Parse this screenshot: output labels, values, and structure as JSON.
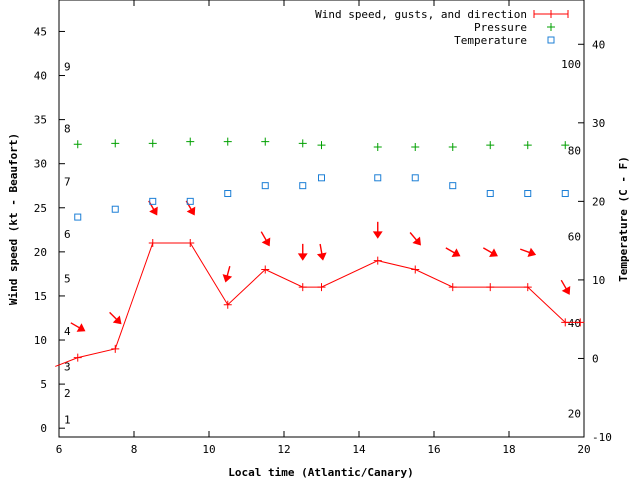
{
  "chart_data": {
    "type": "line",
    "title": "",
    "xlabel": "Local time (Atlantic/Canary)",
    "ylabel": "Wind speed (kt - Beaufort)",
    "y2label": "Temperature (C - F)",
    "xlim": [
      6,
      20
    ],
    "ylim": [
      -1,
      48
    ],
    "y2lim": [
      -10,
      45
    ],
    "x_ticks": [
      6,
      8,
      10,
      12,
      14,
      16,
      18,
      20
    ],
    "y_ticks": [
      0,
      5,
      10,
      15,
      20,
      25,
      30,
      35,
      40,
      45
    ],
    "y2_ticks": [
      -10,
      0,
      10,
      20,
      30,
      40
    ],
    "beaufort_labels": [
      {
        "label": "1",
        "y": 1
      },
      {
        "label": "2",
        "y": 4
      },
      {
        "label": "3",
        "y": 7
      },
      {
        "label": "4",
        "y": 11
      },
      {
        "label": "5",
        "y": 17
      },
      {
        "label": "6",
        "y": 22
      },
      {
        "label": "7",
        "y": 28
      },
      {
        "label": "8",
        "y": 34
      },
      {
        "label": "9",
        "y": 41
      }
    ],
    "fahrenheit_labels": [
      {
        "label": "20",
        "y2": -7
      },
      {
        "label": "40",
        "y2": 4.5
      },
      {
        "label": "60",
        "y2": 15.5
      },
      {
        "label": "80",
        "y2": 26.5
      },
      {
        "label": "100",
        "y2": 37.5
      }
    ],
    "legend": {
      "position": "top-right",
      "entries": [
        "Wind speed, gusts, and direction",
        "Pressure",
        "Temperature"
      ]
    },
    "series": [
      {
        "name": "Wind speed, gusts, and direction",
        "color": "#ff0000",
        "marker": "plus",
        "x": [
          5.9,
          6.5,
          7.5,
          8.5,
          9.5,
          10.5,
          11.5,
          12.5,
          13,
          14.5,
          15.5,
          16.5,
          17.5,
          18.5,
          19.5,
          19.9
        ],
        "y": [
          7,
          8,
          9,
          21,
          21,
          14,
          18,
          16,
          16,
          19,
          18,
          16,
          16,
          16,
          12,
          12
        ]
      },
      {
        "name": "Wind direction arrows",
        "color": "#ff0000",
        "x": [
          6.5,
          7.5,
          8.5,
          9.5,
          10.5,
          11.5,
          12.5,
          13,
          14.5,
          15.5,
          16.5,
          17.5,
          18.5,
          19.5
        ],
        "y": [
          11.5,
          12.5,
          25,
          25,
          17.5,
          21.5,
          20,
          20,
          22.5,
          21.5,
          20,
          20,
          20,
          16
        ],
        "direction_deg": [
          300,
          315,
          330,
          330,
          15,
          330,
          0,
          350,
          0,
          320,
          300,
          300,
          290,
          330
        ]
      },
      {
        "name": "Pressure",
        "color": "#00a000",
        "marker": "plus",
        "x": [
          6.5,
          7.5,
          8.5,
          9.5,
          10.5,
          11.5,
          12.5,
          13,
          14.5,
          15.5,
          16.5,
          17.5,
          18.5,
          19.5
        ],
        "y": [
          32.2,
          32.3,
          32.3,
          32.5,
          32.5,
          32.5,
          32.3,
          32.1,
          31.9,
          31.9,
          31.9,
          32.1,
          32.1,
          32.1
        ]
      },
      {
        "name": "Temperature",
        "color": "#1c7fd6",
        "marker": "square",
        "axis": "y2",
        "x": [
          6.5,
          7.5,
          8.5,
          9.5,
          10.5,
          11.5,
          12.5,
          13,
          14.5,
          15.5,
          16.5,
          17.5,
          18.5,
          19.5
        ],
        "y": [
          18,
          19,
          20,
          20,
          21,
          22,
          22,
          23,
          23,
          23,
          22,
          21,
          21,
          21
        ]
      }
    ]
  }
}
